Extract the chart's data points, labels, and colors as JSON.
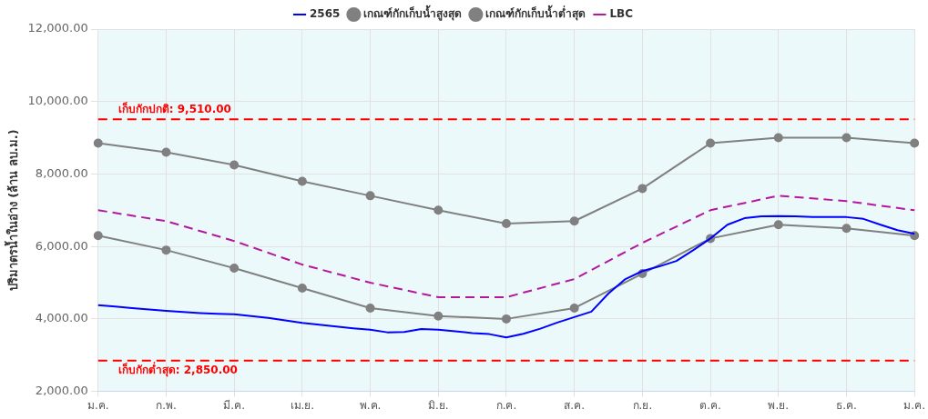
{
  "chart_data": {
    "type": "line",
    "ylabel": "ปริมาตรน้ำในอ่าง (ล้าน ลบ.ม.)",
    "categories": [
      "ม.ค.",
      null,
      null,
      null,
      "ก.พ.",
      null,
      null,
      null,
      "มี.ค.",
      null,
      null,
      null,
      "เม.ย.",
      null,
      null,
      null,
      "พ.ค.",
      null,
      null,
      null,
      "มิ.ย.",
      null,
      null,
      null,
      "ก.ค.",
      null,
      null,
      null,
      "ส.ค.",
      null,
      null,
      null,
      "ก.ย.",
      null,
      null,
      null,
      "ต.ค.",
      null,
      null,
      null,
      "พ.ย.",
      null,
      null,
      null,
      "ธ.ค.",
      null,
      null,
      null,
      "ม.ค."
    ],
    "ylim": [
      2000,
      12000
    ],
    "yticks": [
      {
        "value": 2000,
        "label": "2,000.00"
      },
      {
        "value": 4000,
        "label": "4,000.00"
      },
      {
        "value": 6000,
        "label": "6,000.00"
      },
      {
        "value": 8000,
        "label": "8,000.00"
      },
      {
        "value": 10000,
        "label": "10,000.00"
      },
      {
        "value": 12000,
        "label": "12,000.00"
      }
    ],
    "grid": true,
    "legend": "top",
    "series": [
      {
        "name": "2565",
        "color": "#0000ff",
        "marker": "none",
        "line_style": "solid",
        "values": [
          4380,
          4340,
          4300,
          4260,
          4220,
          4190,
          4160,
          4140,
          4130,
          4080,
          4030,
          3960,
          3890,
          3840,
          3790,
          3740,
          3700,
          3630,
          3640,
          3720,
          3700,
          3660,
          3610,
          3580,
          3490,
          3590,
          3730,
          3900,
          4050,
          4200,
          4700,
          5100,
          5320,
          5450,
          5600,
          5900,
          6220,
          6600,
          6780,
          6830,
          6840,
          6830,
          6810,
          6810,
          6810,
          6760,
          6600,
          6450,
          6350
        ]
      },
      {
        "name": "เกณฑ์กักเก็บน้ำสูงสุด",
        "color": "#808080",
        "marker": "circle",
        "line_style": "solid",
        "values": [
          8850,
          null,
          null,
          null,
          8600,
          null,
          null,
          null,
          8250,
          null,
          null,
          null,
          7800,
          null,
          null,
          null,
          7400,
          null,
          null,
          null,
          7000,
          null,
          null,
          null,
          6630,
          null,
          null,
          null,
          6700,
          null,
          null,
          null,
          7600,
          null,
          null,
          null,
          8850,
          null,
          null,
          null,
          9000,
          null,
          null,
          null,
          9000,
          null,
          null,
          null,
          8850
        ]
      },
      {
        "name": "เกณฑ์กักเก็บน้ำต่ำสุด",
        "color": "#808080",
        "marker": "circle",
        "line_style": "solid",
        "values": [
          6300,
          null,
          null,
          null,
          5900,
          null,
          null,
          null,
          5400,
          null,
          null,
          null,
          4850,
          null,
          null,
          null,
          4300,
          null,
          null,
          null,
          4080,
          null,
          null,
          null,
          4000,
          null,
          null,
          null,
          4300,
          null,
          null,
          null,
          5250,
          null,
          null,
          null,
          6220,
          null,
          null,
          null,
          6600,
          null,
          null,
          null,
          6500,
          null,
          null,
          null,
          6300
        ]
      },
      {
        "name": "LBC",
        "color": "#b5179e",
        "marker": "none",
        "line_style": "dashed",
        "values": [
          7000,
          null,
          null,
          null,
          6700,
          null,
          null,
          null,
          6150,
          null,
          null,
          null,
          5500,
          null,
          null,
          null,
          5000,
          null,
          null,
          null,
          4600,
          null,
          null,
          null,
          4600,
          null,
          null,
          null,
          5100,
          null,
          null,
          null,
          6100,
          null,
          null,
          null,
          7000,
          null,
          null,
          null,
          7400,
          null,
          null,
          null,
          7250,
          null,
          null,
          null,
          7000
        ]
      }
    ],
    "ref_lines": [
      {
        "axis": "y",
        "value": 9510,
        "label": "เก็บกักปกติ: 9,510.00",
        "color": "#ff0000",
        "line_style": "dashed"
      },
      {
        "axis": "y",
        "value": 2850,
        "label": "เก็บกักต่ำสุด: 2,850.00",
        "color": "#ff0000",
        "line_style": "dashed"
      }
    ]
  }
}
